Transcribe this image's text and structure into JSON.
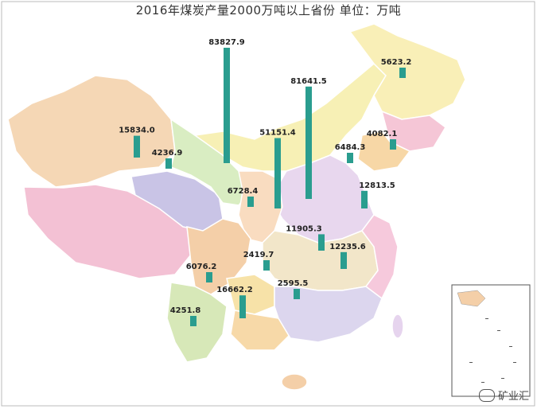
{
  "title": "2016年煤炭产量2000万吨以上省份 单位：万吨",
  "watermark": "矿业汇",
  "chart_data": {
    "type": "bar",
    "title": "2016年煤炭产量2000万吨以上省份 单位：万吨",
    "unit": "万吨",
    "values": [
      83827.9,
      81641.5,
      51151.4,
      16662.2,
      15834.0,
      12813.5,
      12235.6,
      11905.3,
      6728.4,
      6484.3,
      6076.2,
      5623.2,
      4251.8,
      4236.9,
      4082.1,
      2595.5,
      2419.7
    ],
    "labels": [
      "83827.9",
      "81641.5",
      "51151.4",
      "16662.2",
      "15834.0",
      "12813.5",
      "12235.6",
      "11905.3",
      "6728.4",
      "6484.3",
      "6076.2",
      "5623.2",
      "4251.8",
      "4236.9",
      "4082.1",
      "2595.5",
      "2419.7"
    ]
  },
  "colors": {
    "bar": "#2a9d8f",
    "xinjiang": "#f5d7b5",
    "tibet": "#f3c1d4",
    "qinghai": "#c9c4e6",
    "gansu": "#d9edc2",
    "neimenggu": "#f7f0b5",
    "heilongjiang": "#f9efb7",
    "jilin": "#f5c6d6",
    "liaoning": "#f7d7a6",
    "sichuan": "#f4cfa8",
    "yunnan": "#d7e8b8",
    "guangxi": "#f7d9a8",
    "south": "#dcd6ee"
  }
}
